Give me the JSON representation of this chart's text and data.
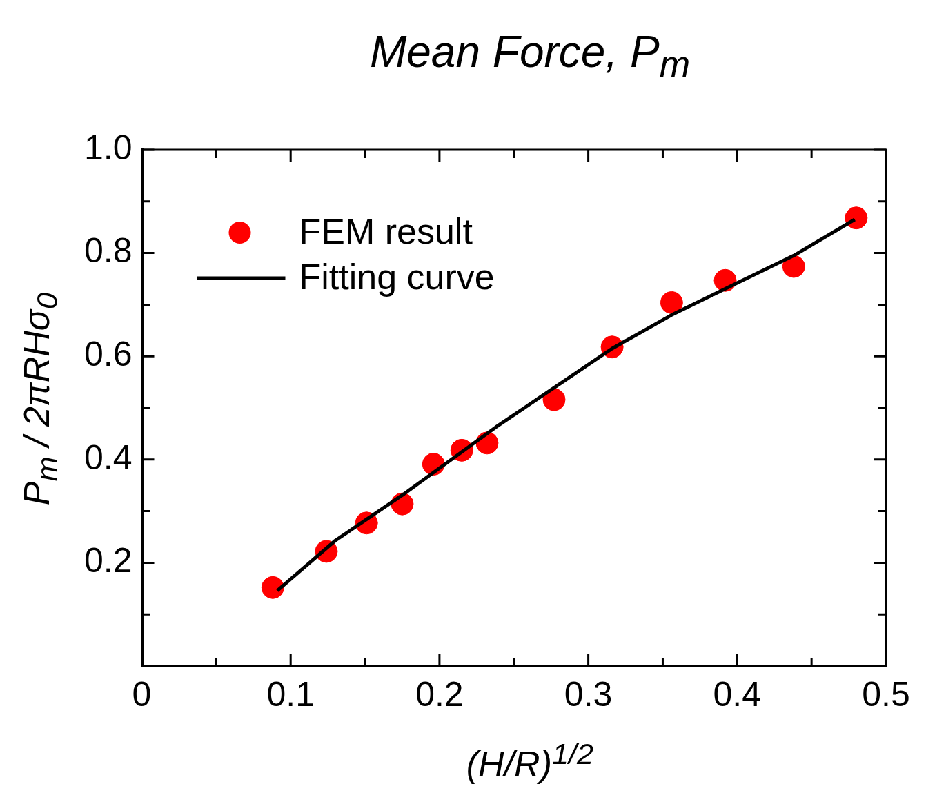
{
  "chart_data": {
    "type": "scatter",
    "title": "Mean Force, P$_{m}$",
    "xlabel": "(H/R)$^{1/2}$",
    "ylabel": "P$_{m}$ / 2πRHσ$_{0}$",
    "xlim": [
      0,
      0.5
    ],
    "ylim": [
      0,
      1
    ],
    "xticks": [
      0,
      {
        "value": 0.05,
        "label": null
      },
      0.1,
      {
        "value": 0.15,
        "label": null
      },
      0.2,
      {
        "value": 0.25,
        "label": null
      },
      0.3,
      {
        "value": 0.35,
        "label": null
      },
      0.4,
      {
        "value": 0.45,
        "label": null
      },
      0.5
    ],
    "yticks": [
      {
        "value": 0,
        "label": null
      },
      {
        "value": 0.1,
        "label": null
      },
      0.2,
      {
        "value": 0.3,
        "label": null
      },
      0.4,
      {
        "value": 0.5,
        "label": null
      },
      0.6,
      {
        "value": 0.7,
        "label": null
      },
      0.8,
      {
        "value": 0.9,
        "label": null
      },
      {
        "value": 1,
        "label": "1.0"
      }
    ],
    "legend": "top left",
    "grid": false,
    "series": [
      {
        "name": "FEM result",
        "type": "scatter",
        "marker": "circle",
        "color": "#ff0000",
        "x": [
          0.088,
          0.124,
          0.151,
          0.175,
          0.196,
          0.215,
          0.232,
          0.277,
          0.316,
          0.356,
          0.392,
          0.438,
          0.48
        ],
        "values": [
          0.152,
          0.222,
          0.277,
          0.314,
          0.391,
          0.418,
          0.432,
          0.516,
          0.618,
          0.704,
          0.747,
          0.774,
          0.868
        ]
      },
      {
        "name": "Fitting curve",
        "type": "line",
        "marker": "none",
        "line_style": "solid",
        "color": "#000000",
        "x": [
          0.091,
          0.13,
          0.175,
          0.238,
          0.316,
          0.356,
          0.4,
          0.438,
          0.479
        ],
        "values": [
          0.146,
          0.243,
          0.331,
          0.463,
          0.615,
          0.68,
          0.742,
          0.795,
          0.865
        ]
      }
    ]
  }
}
